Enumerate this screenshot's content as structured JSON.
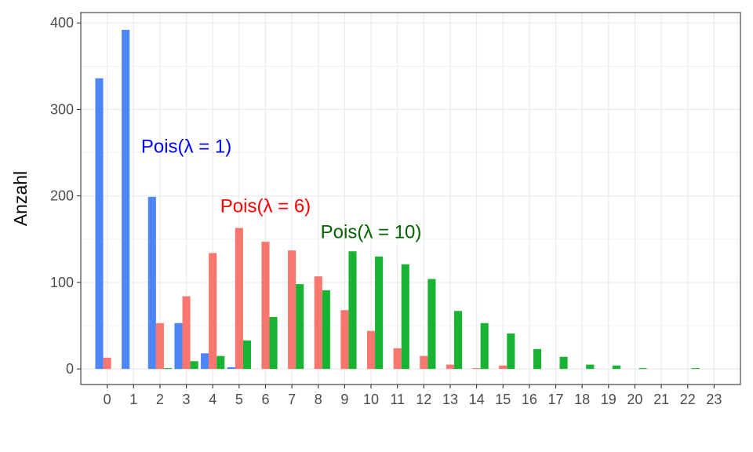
{
  "chart_data": {
    "type": "bar",
    "ylabel": "Anzahl",
    "xlabel": "",
    "x": [
      0,
      1,
      2,
      3,
      4,
      5,
      6,
      7,
      8,
      9,
      10,
      11,
      12,
      13,
      14,
      15,
      16,
      17,
      18,
      19,
      20,
      21,
      22,
      23
    ],
    "x_tick_labels": [
      "0",
      "1",
      "2",
      "3",
      "4",
      "5",
      "6",
      "7",
      "8",
      "9",
      "10",
      "11",
      "12",
      "13",
      "14",
      "15",
      "16",
      "17",
      "18",
      "19",
      "20",
      "21",
      "22",
      "23"
    ],
    "xlim": [
      -1,
      24
    ],
    "ylim": [
      -18,
      412
    ],
    "y_ticks": [
      0,
      100,
      200,
      300,
      400
    ],
    "y_tick_labels": [
      "0",
      "100",
      "200",
      "300",
      "400"
    ],
    "grid": true,
    "series": [
      {
        "color": "#4f86f7",
        "values": [
          336,
          392,
          199,
          53,
          18,
          2,
          0,
          0,
          0,
          0,
          0,
          0,
          0,
          0,
          0,
          0,
          0,
          0,
          0,
          0,
          0,
          0,
          0,
          0
        ]
      },
      {
        "color": "#f8766d",
        "values": [
          13,
          0,
          53,
          84,
          134,
          163,
          147,
          137,
          107,
          68,
          44,
          24,
          15,
          5,
          1,
          4,
          0,
          0,
          0,
          0,
          0,
          0,
          0,
          0
        ]
      },
      {
        "color": "#19b333",
        "values": [
          0,
          0,
          1,
          9,
          15,
          33,
          60,
          98,
          91,
          136,
          130,
          121,
          104,
          67,
          53,
          41,
          23,
          14,
          5,
          4,
          1,
          0,
          1,
          0
        ]
      }
    ],
    "annotations": [
      {
        "text": "Pois(λ = 1)",
        "x": 3.0,
        "y": 250,
        "color": "#0000ff"
      },
      {
        "text": "Pois(λ = 6)",
        "x": 6.0,
        "y": 181,
        "color": "#ff0000"
      },
      {
        "text": "Pois(λ = 10)",
        "x": 10.0,
        "y": 151,
        "color": "#006400"
      }
    ]
  }
}
